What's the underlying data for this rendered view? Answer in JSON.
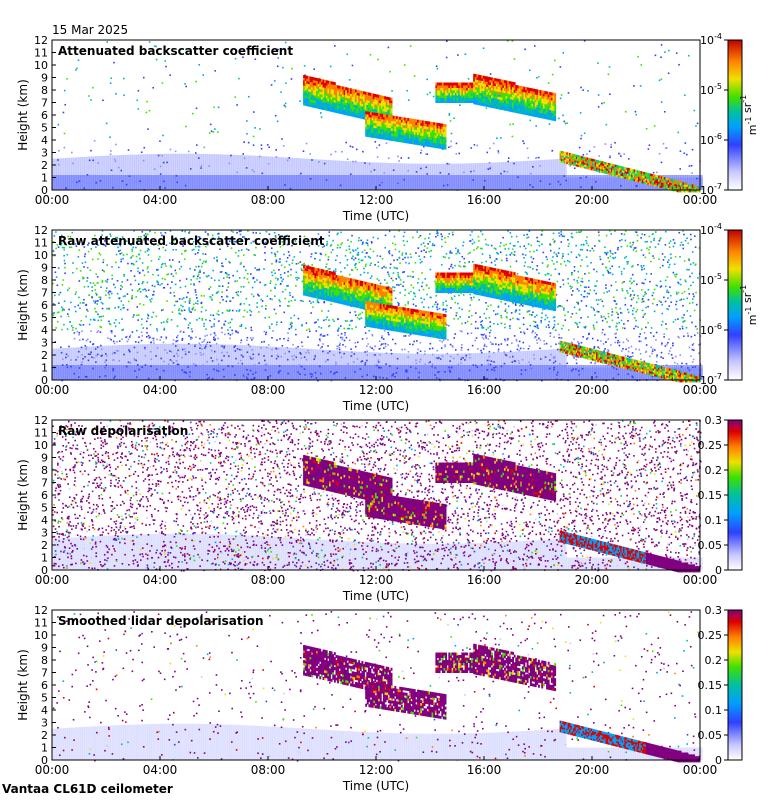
{
  "date": "15 Mar 2025",
  "instrument": "Vantaa CL61D ceilometer",
  "chart_data": [
    {
      "type": "heatmap",
      "title": "Attenuated backscatter coefficient",
      "xlabel": "Time (UTC)",
      "ylabel": "Height (km)",
      "x_ticks": [
        "00:00",
        "04:00",
        "08:00",
        "12:00",
        "16:00",
        "20:00",
        "00:00"
      ],
      "y_ticks": [
        "0",
        "1",
        "2",
        "3",
        "4",
        "5",
        "6",
        "7",
        "8",
        "9",
        "10",
        "11",
        "12"
      ],
      "ylim": [
        0,
        12
      ],
      "scale": "log",
      "colorbar_ticks": [
        "10-7",
        "10-6",
        "10-5",
        "10-4"
      ],
      "colorbar_label": "m-1 sr-1",
      "colors": [
        "#ffffff",
        "#c8c8ff",
        "#3040ff",
        "#00a0ff",
        "#00c0a0",
        "#40e000",
        "#f0e000",
        "#ff8000",
        "#e00000"
      ]
    },
    {
      "type": "heatmap",
      "title": "Raw attenuated backscatter coefficient",
      "xlabel": "Time (UTC)",
      "ylabel": "Height (km)",
      "x_ticks": [
        "00:00",
        "04:00",
        "08:00",
        "12:00",
        "16:00",
        "20:00",
        "00:00"
      ],
      "y_ticks": [
        "0",
        "1",
        "2",
        "3",
        "4",
        "5",
        "6",
        "7",
        "8",
        "9",
        "10",
        "11",
        "12"
      ],
      "ylim": [
        0,
        12
      ],
      "scale": "log",
      "colorbar_ticks": [
        "10-7",
        "10-6",
        "10-5",
        "10-4"
      ],
      "colorbar_label": "m-1 sr-1",
      "colors": [
        "#ffffff",
        "#c8c8ff",
        "#3040ff",
        "#00a0ff",
        "#00c0a0",
        "#40e000",
        "#f0e000",
        "#ff8000",
        "#e00000"
      ]
    },
    {
      "type": "heatmap",
      "title": "Raw depolarisation",
      "xlabel": "Time (UTC)",
      "ylabel": "Height (km)",
      "x_ticks": [
        "00:00",
        "04:00",
        "08:00",
        "12:00",
        "16:00",
        "20:00",
        "00:00"
      ],
      "y_ticks": [
        "0",
        "1",
        "2",
        "3",
        "4",
        "5",
        "6",
        "7",
        "8",
        "9",
        "10",
        "11",
        "12"
      ],
      "ylim": [
        0,
        12
      ],
      "scale": "linear",
      "colorbar_ticks": [
        "0",
        "0.05",
        "0.1",
        "0.15",
        "0.2",
        "0.25",
        "0.3"
      ],
      "colorbar_label": "",
      "colors": [
        "#ffffff",
        "#c8c8ff",
        "#3040ff",
        "#00a0ff",
        "#00c0a0",
        "#40e000",
        "#f0e000",
        "#ff8000",
        "#e00000",
        "#800080"
      ]
    },
    {
      "type": "heatmap",
      "title": "Smoothed lidar depolarisation",
      "xlabel": "Time (UTC)",
      "ylabel": "Height (km)",
      "x_ticks": [
        "00:00",
        "04:00",
        "08:00",
        "12:00",
        "16:00",
        "20:00",
        "00:00"
      ],
      "y_ticks": [
        "0",
        "1",
        "2",
        "3",
        "4",
        "5",
        "6",
        "7",
        "8",
        "9",
        "10",
        "11",
        "12"
      ],
      "ylim": [
        0,
        12
      ],
      "scale": "linear",
      "colorbar_ticks": [
        "0",
        "0.05",
        "0.1",
        "0.15",
        "0.2",
        "0.25",
        "0.3"
      ],
      "colorbar_label": "",
      "colors": [
        "#ffffff",
        "#c8c8ff",
        "#3040ff",
        "#00a0ff",
        "#00c0a0",
        "#40e000",
        "#f0e000",
        "#ff8000",
        "#e00000",
        "#800080"
      ]
    }
  ]
}
